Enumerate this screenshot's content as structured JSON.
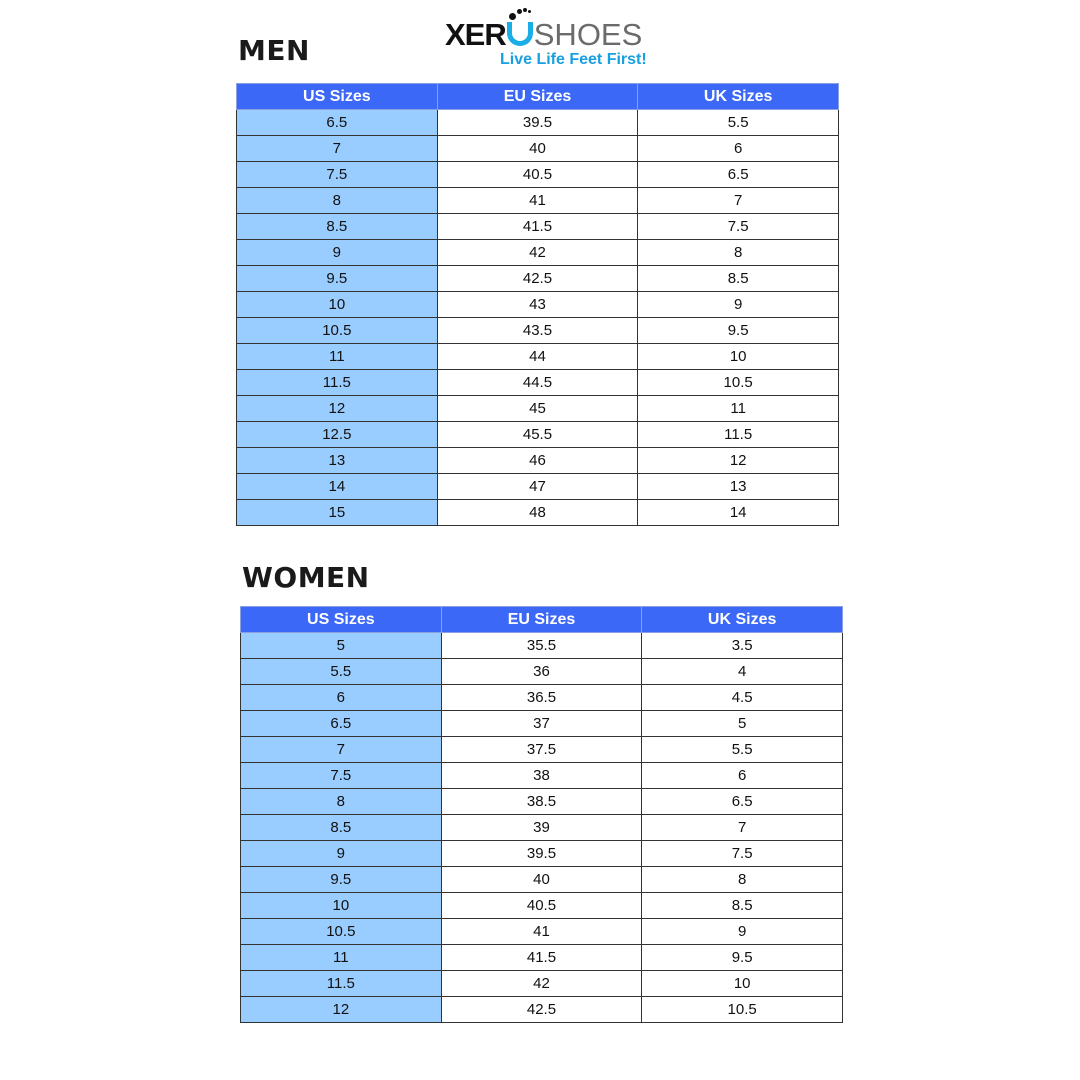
{
  "logo": {
    "brand_bold": "XER",
    "brand_o": "O",
    "brand_light": "SHOES",
    "tagline": "Live Life Feet First!"
  },
  "colors": {
    "header": "#3b68f7",
    "us_column": "#99ccff",
    "logo_accent": "#19aee6"
  },
  "headers": [
    "US Sizes",
    "EU Sizes",
    "UK Sizes"
  ],
  "men": {
    "title": "MEN",
    "rows": [
      [
        "6.5",
        "39.5",
        "5.5"
      ],
      [
        "7",
        "40",
        "6"
      ],
      [
        "7.5",
        "40.5",
        "6.5"
      ],
      [
        "8",
        "41",
        "7"
      ],
      [
        "8.5",
        "41.5",
        "7.5"
      ],
      [
        "9",
        "42",
        "8"
      ],
      [
        "9.5",
        "42.5",
        "8.5"
      ],
      [
        "10",
        "43",
        "9"
      ],
      [
        "10.5",
        "43.5",
        "9.5"
      ],
      [
        "11",
        "44",
        "10"
      ],
      [
        "11.5",
        "44.5",
        "10.5"
      ],
      [
        "12",
        "45",
        "11"
      ],
      [
        "12.5",
        "45.5",
        "11.5"
      ],
      [
        "13",
        "46",
        "12"
      ],
      [
        "14",
        "47",
        "13"
      ],
      [
        "15",
        "48",
        "14"
      ]
    ]
  },
  "women": {
    "title": "WOMEN",
    "rows": [
      [
        "5",
        "35.5",
        "3.5"
      ],
      [
        "5.5",
        "36",
        "4"
      ],
      [
        "6",
        "36.5",
        "4.5"
      ],
      [
        "6.5",
        "37",
        "5"
      ],
      [
        "7",
        "37.5",
        "5.5"
      ],
      [
        "7.5",
        "38",
        "6"
      ],
      [
        "8",
        "38.5",
        "6.5"
      ],
      [
        "8.5",
        "39",
        "7"
      ],
      [
        "9",
        "39.5",
        "7.5"
      ],
      [
        "9.5",
        "40",
        "8"
      ],
      [
        "10",
        "40.5",
        "8.5"
      ],
      [
        "10.5",
        "41",
        "9"
      ],
      [
        "11",
        "41.5",
        "9.5"
      ],
      [
        "11.5",
        "42",
        "10"
      ],
      [
        "12",
        "42.5",
        "10.5"
      ]
    ]
  }
}
